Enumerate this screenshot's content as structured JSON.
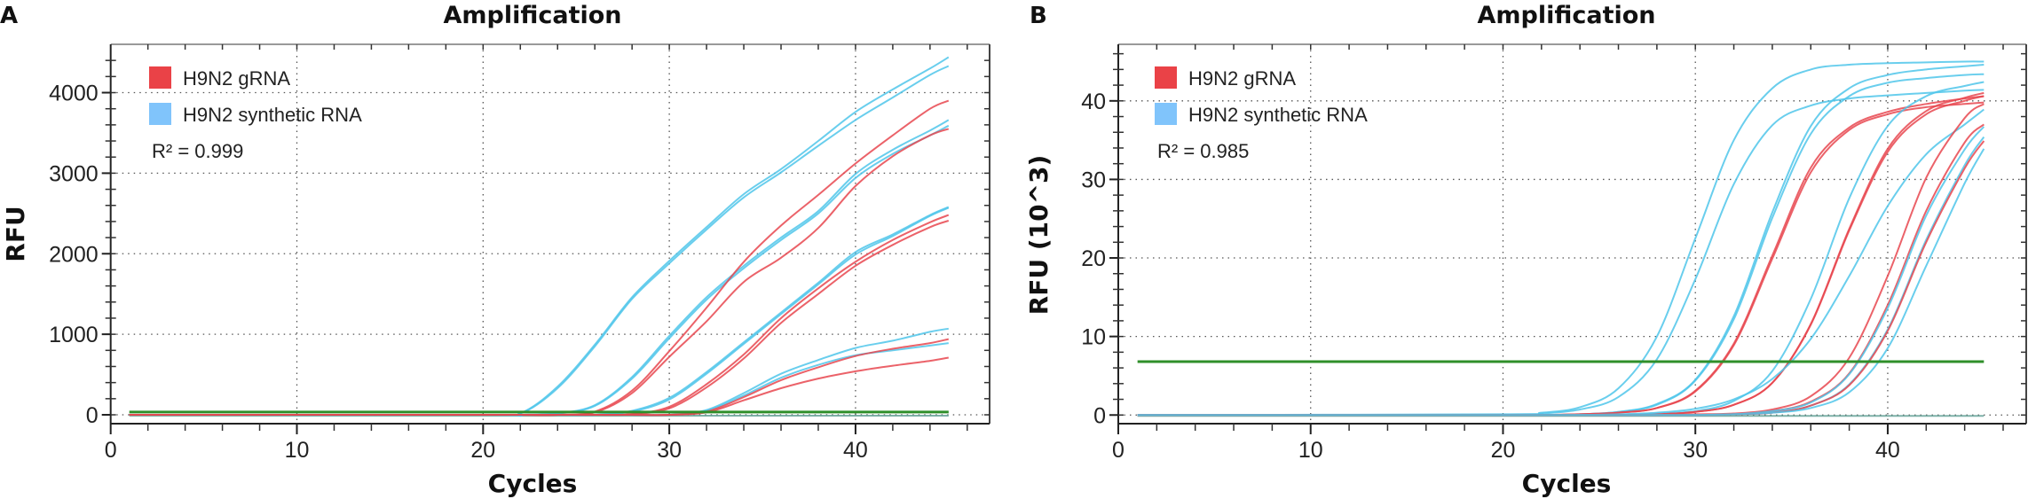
{
  "colors": {
    "gRNA_curve": "#e8474f",
    "synthetic_curve": "#4fc6ea",
    "gRNA_swatch": "#ea4247",
    "synthetic_swatch": "#80c4fb",
    "threshold": "#2f8f2a",
    "negative_control": "#5f9e93",
    "grid": "#555555"
  },
  "chart_data": [
    {
      "panel_label": "A",
      "type": "line",
      "title": "Amplification",
      "xlabel": "Cycles",
      "ylabel": "RFU",
      "xlim": [
        0,
        47.2
      ],
      "ylim": [
        -110,
        4600
      ],
      "xticks": [
        0,
        10,
        20,
        30,
        40
      ],
      "yticks": [
        0,
        1000,
        2000,
        3000,
        4000
      ],
      "grid": "dotted",
      "legend_position": "top-left",
      "legend": [
        {
          "label": "H9N2 gRNA",
          "color_key": "gRNA_swatch"
        },
        {
          "label": "H9N2 synthetic RNA",
          "color_key": "synthetic_swatch"
        }
      ],
      "annotation": "R² = 0.999",
      "threshold": 35,
      "threshold_range": [
        1,
        45
      ],
      "x": [
        1,
        20,
        22,
        24,
        26,
        28,
        30,
        32,
        34,
        36,
        38,
        40,
        42,
        44,
        45
      ],
      "series": [
        {
          "name": "H9N2 synthetic RNA",
          "values": [
            0,
            0,
            20,
            350,
            870,
            1460,
            1910,
            2330,
            2740,
            3050,
            3400,
            3760,
            4040,
            4300,
            4440
          ]
        },
        {
          "name": "H9N2 synthetic RNA",
          "values": [
            0,
            0,
            15,
            330,
            850,
            1440,
            1880,
            2300,
            2700,
            3010,
            3340,
            3660,
            3940,
            4220,
            4330
          ]
        },
        {
          "name": "H9N2 synthetic RNA",
          "values": [
            0,
            0,
            0,
            20,
            120,
            470,
            980,
            1460,
            1850,
            2200,
            2530,
            2990,
            3290,
            3530,
            3660
          ]
        },
        {
          "name": "H9N2 synthetic RNA",
          "values": [
            0,
            0,
            0,
            15,
            110,
            450,
            950,
            1430,
            1820,
            2170,
            2500,
            2940,
            3240,
            3470,
            3590
          ]
        },
        {
          "name": "H9N2 gRNA",
          "values": [
            0,
            0,
            0,
            0,
            40,
            300,
            790,
            1330,
            1900,
            2350,
            2730,
            3120,
            3470,
            3800,
            3900
          ]
        },
        {
          "name": "H9N2 gRNA",
          "values": [
            0,
            0,
            0,
            0,
            30,
            270,
            720,
            1160,
            1650,
            1950,
            2320,
            2840,
            3210,
            3470,
            3550
          ]
        },
        {
          "name": "H9N2 synthetic RNA",
          "values": [
            0,
            0,
            0,
            0,
            0,
            50,
            210,
            530,
            900,
            1270,
            1640,
            2020,
            2240,
            2480,
            2580
          ]
        },
        {
          "name": "H9N2 synthetic RNA",
          "values": [
            0,
            0,
            0,
            0,
            0,
            40,
            190,
            510,
            880,
            1250,
            1620,
            1990,
            2220,
            2470,
            2570
          ]
        },
        {
          "name": "H9N2 gRNA",
          "values": [
            0,
            0,
            0,
            0,
            0,
            10,
            100,
            380,
            750,
            1200,
            1570,
            1900,
            2170,
            2390,
            2480
          ]
        },
        {
          "name": "H9N2 gRNA",
          "values": [
            0,
            0,
            0,
            0,
            0,
            5,
            80,
            340,
            700,
            1140,
            1500,
            1850,
            2110,
            2330,
            2410
          ]
        },
        {
          "name": "H9N2 synthetic RNA",
          "values": [
            0,
            0,
            0,
            0,
            0,
            0,
            0,
            60,
            270,
            510,
            680,
            830,
            920,
            1030,
            1070
          ]
        },
        {
          "name": "H9N2 synthetic RNA",
          "values": [
            0,
            0,
            0,
            0,
            0,
            0,
            0,
            50,
            240,
            460,
            620,
            740,
            800,
            860,
            890
          ]
        },
        {
          "name": "H9N2 gRNA",
          "values": [
            0,
            0,
            0,
            0,
            0,
            0,
            0,
            40,
            220,
            430,
            590,
            730,
            820,
            890,
            940
          ]
        },
        {
          "name": "H9N2 gRNA",
          "values": [
            0,
            0,
            0,
            0,
            0,
            0,
            0,
            30,
            180,
            330,
            450,
            540,
            610,
            670,
            710
          ]
        }
      ]
    },
    {
      "panel_label": "B",
      "type": "line",
      "title": "Amplification",
      "xlabel": "Cycles",
      "ylabel": "RFU (10^3)",
      "xlim": [
        0,
        47.2
      ],
      "ylim": [
        -1.1,
        47.2
      ],
      "xticks": [
        0,
        10,
        20,
        30,
        40
      ],
      "yticks": [
        0,
        10,
        20,
        30,
        40
      ],
      "grid": "dotted",
      "legend_position": "top-left",
      "legend": [
        {
          "label": "H9N2 gRNA",
          "color_key": "gRNA_swatch"
        },
        {
          "label": "H9N2 synthetic RNA",
          "color_key": "synthetic_swatch"
        }
      ],
      "annotation": "R² = 0.985",
      "threshold": 6.8,
      "threshold_range": [
        1,
        45
      ],
      "x": [
        1,
        20,
        22,
        24,
        26,
        28,
        30,
        32,
        34,
        36,
        38,
        40,
        42,
        44,
        45
      ],
      "series": [
        {
          "name": "H9N2 synthetic RNA",
          "values": [
            0,
            0.1,
            0.3,
            1.0,
            3.4,
            10.0,
            22.5,
            35.0,
            41.6,
            44.0,
            44.6,
            44.8,
            44.9,
            45.0,
            45.0
          ]
        },
        {
          "name": "H9N2 synthetic RNA",
          "values": [
            0,
            0,
            0.2,
            0.7,
            2.3,
            7.1,
            17.3,
            29.4,
            36.9,
            39.4,
            40.3,
            40.7,
            41.0,
            41.3,
            41.4
          ]
        },
        {
          "name": "H9N2 synthetic RNA",
          "values": [
            0,
            0,
            0,
            0.1,
            0.4,
            1.4,
            4.5,
            12.6,
            25.8,
            36.8,
            41.6,
            43.3,
            44.0,
            44.4,
            44.6
          ]
        },
        {
          "name": "H9N2 synthetic RNA",
          "values": [
            0,
            0,
            0,
            0.1,
            0.4,
            1.3,
            4.4,
            12.2,
            25.1,
            35.8,
            40.6,
            42.3,
            42.9,
            43.3,
            43.4
          ]
        },
        {
          "name": "H9N2 gRNA",
          "values": [
            0,
            0,
            0,
            0.1,
            0.3,
            0.9,
            3.1,
            9.1,
            20.3,
            31.5,
            36.6,
            38.6,
            39.6,
            40.3,
            40.6
          ]
        },
        {
          "name": "H9N2 gRNA",
          "values": [
            0,
            0,
            0,
            0.1,
            0.3,
            0.9,
            3.0,
            8.9,
            19.9,
            30.9,
            36.3,
            38.3,
            39.2,
            39.6,
            39.8
          ]
        },
        {
          "name": "H9N2 synthetic RNA",
          "values": [
            0,
            0,
            0,
            0,
            0,
            0.2,
            0.5,
            1.8,
            5.6,
            14.8,
            27.6,
            36.8,
            40.6,
            41.9,
            42.4
          ]
        },
        {
          "name": "H9N2 gRNA",
          "values": [
            0,
            0,
            0,
            0,
            0,
            0.1,
            0.4,
            1.3,
            4.1,
            11.6,
            23.7,
            33.9,
            38.7,
            40.4,
            41.0
          ]
        },
        {
          "name": "H9N2 gRNA",
          "values": [
            0,
            0,
            0,
            0,
            0,
            0.1,
            0.4,
            1.3,
            4.1,
            11.5,
            23.5,
            33.5,
            38.3,
            40.0,
            40.6
          ]
        },
        {
          "name": "H9N2 synthetic RNA",
          "values": [
            0,
            0,
            0,
            0,
            0.1,
            0.3,
            0.8,
            2.0,
            4.6,
            9.7,
            17.7,
            26.6,
            33.2,
            37.0,
            38.9
          ]
        },
        {
          "name": "H9N2 gRNA",
          "values": [
            0,
            0,
            0,
            0,
            0,
            0,
            0.1,
            0.2,
            0.7,
            2.4,
            7.3,
            17.7,
            30.2,
            37.8,
            39.6
          ]
        },
        {
          "name": "H9N2 gRNA",
          "values": [
            0,
            0,
            0,
            0,
            0,
            0,
            0,
            0.1,
            0.5,
            1.7,
            5.3,
            14.0,
            26.0,
            34.7,
            37.0
          ]
        },
        {
          "name": "H9N2 synthetic RNA",
          "values": [
            0,
            0,
            0,
            0,
            0,
            0,
            0,
            0.1,
            0.5,
            1.6,
            5.2,
            13.6,
            25.4,
            33.8,
            36.7
          ]
        },
        {
          "name": "H9N2 synthetic RNA",
          "values": [
            0,
            0,
            0,
            0,
            0,
            0,
            0,
            0.1,
            0.3,
            1.2,
            3.9,
            10.9,
            22.3,
            31.8,
            35.4
          ]
        },
        {
          "name": "H9N2 gRNA",
          "values": [
            0,
            0,
            0,
            0,
            0,
            0,
            0,
            0.1,
            0.3,
            1.2,
            3.8,
            10.7,
            22.0,
            31.4,
            34.9
          ]
        },
        {
          "name": "H9N2 synthetic RNA",
          "values": [
            0,
            0,
            0,
            0,
            0,
            0,
            0,
            0.1,
            0.3,
            0.9,
            2.9,
            8.5,
            19.0,
            29.5,
            33.9
          ]
        }
      ]
    }
  ]
}
